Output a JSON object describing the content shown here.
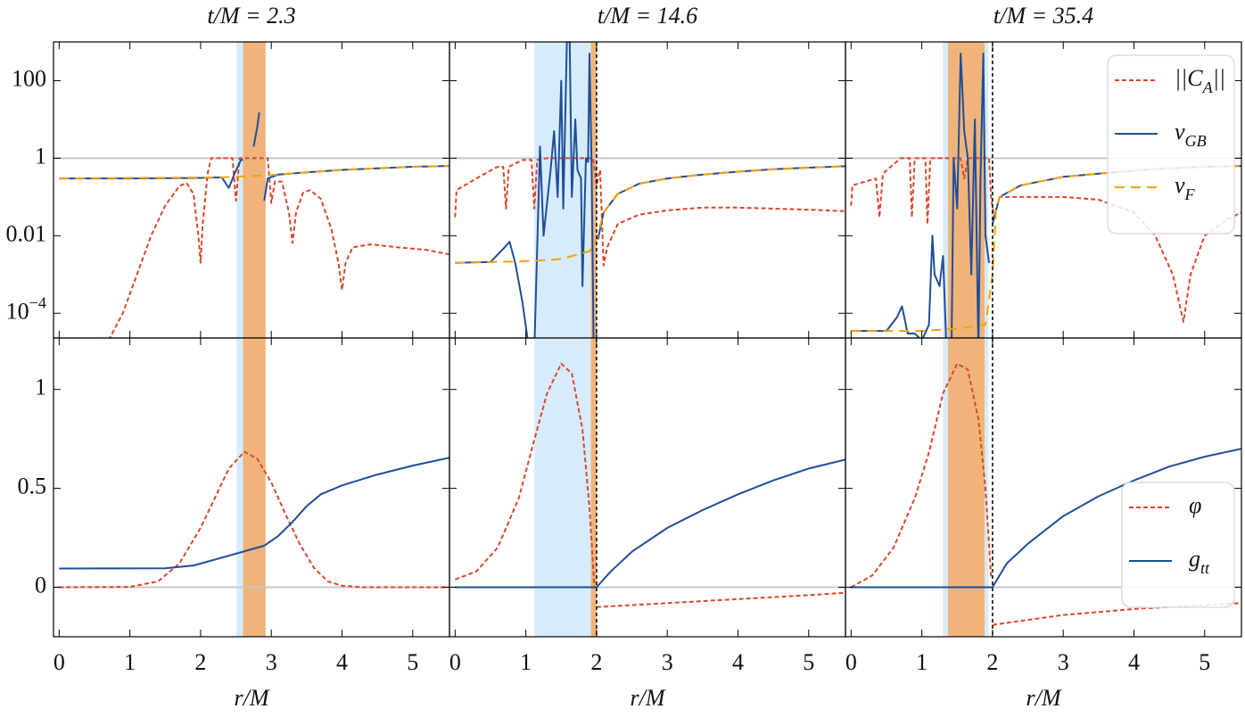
{
  "chart_data": [
    {
      "type": "line",
      "title": "t/M = 2.3",
      "yscale": "log",
      "xlim": [
        -0.08,
        5.52
      ],
      "ylim": [
        2.3e-05,
        1000
      ],
      "xticks": [
        0,
        1,
        2,
        3,
        4,
        5
      ],
      "yticks": [
        100,
        1,
        0.01,
        {
          "value": 0.0001,
          "label": "10^{-4}"
        }
      ],
      "xtick_labels": false,
      "ytick_labels": true,
      "hline": 1,
      "bands": [
        {
          "x": [
            2.51,
            2.6
          ],
          "color": "#d6ebfb"
        },
        {
          "x": [
            2.6,
            2.92
          ],
          "color": "#f0b47a"
        }
      ],
      "series": [
        {
          "color": "#d9472b",
          "linestyle": "dashed",
          "x": [
            0.7,
            0.9,
            1.1,
            1.3,
            1.5,
            1.7,
            1.8,
            1.9,
            1.97,
            2.0,
            2.03,
            2.1,
            2.15,
            2.45,
            2.5,
            2.55,
            2.95,
            3.0,
            3.05,
            3.15,
            3.25,
            3.3,
            3.35,
            3.45,
            3.55,
            3.7,
            3.85,
            3.95,
            4.0,
            4.05,
            4.15,
            4.4,
            4.8,
            5.2,
            5.52
          ],
          "values": [
            2e-05,
            0.0001,
            0.001,
            0.01,
            0.06,
            0.19,
            0.23,
            0.12,
            0.01,
            0.002,
            0.02,
            0.4,
            1,
            1,
            0.08,
            1,
            1,
            0.07,
            0.25,
            0.25,
            0.04,
            0.0065,
            0.04,
            0.13,
            0.15,
            0.09,
            0.015,
            0.002,
            0.0004,
            0.002,
            0.005,
            0.006,
            0.005,
            0.0043,
            0.0033
          ]
        },
        {
          "color": "#1f4e99",
          "linestyle": "solid",
          "x": [
            0,
            1,
            2,
            2.3,
            2.4,
            2.48,
            2.57,
            2.6,
            2.65,
            2.75,
            2.8,
            2.83,
            2.86,
            2.9,
            2.95,
            3.1,
            3.5,
            4,
            4.5,
            5,
            5.52
          ],
          "values": [
            0.3,
            0.3,
            0.31,
            0.32,
            0.17,
            0.4,
            0.9,
            0.9,
            null,
            2,
            6,
            15,
            null,
            0.08,
            0.3,
            0.38,
            0.43,
            0.5,
            0.55,
            0.6,
            0.63
          ]
        },
        {
          "color": "#f0a30a",
          "linestyle": "longdash",
          "x": [
            0,
            2.3,
            2.9,
            3.1,
            3.5,
            4,
            4.5,
            5,
            5.52
          ],
          "values": [
            0.3,
            0.32,
            0.36,
            0.38,
            0.43,
            0.5,
            0.55,
            0.6,
            0.63
          ]
        }
      ]
    },
    {
      "type": "line",
      "title": "t/M = 14.6",
      "yscale": "log",
      "xlim": [
        -0.08,
        5.52
      ],
      "ylim": [
        2.3e-05,
        1000
      ],
      "xticks": [
        0,
        1,
        2,
        3,
        4,
        5
      ],
      "yticks": [
        100,
        1,
        0.01,
        0.0001
      ],
      "xtick_labels": false,
      "ytick_labels": false,
      "hline": 1,
      "vline": 2.0,
      "bands": [
        {
          "x": [
            1.12,
            1.92
          ],
          "color": "#d6ebfb"
        },
        {
          "x": [
            1.92,
            2.0
          ],
          "color": "#f0b47a"
        }
      ],
      "series": [
        {
          "color": "#d9472b",
          "linestyle": "dashed",
          "x": [
            0,
            0.02,
            0.3,
            0.6,
            0.68,
            0.72,
            0.76,
            0.95,
            1.08,
            1.12,
            1.16,
            1.3,
            1.95,
            2.0,
            2.05,
            2.1,
            2.15,
            2.3,
            2.6,
            3,
            3.5,
            4,
            4.5,
            5,
            5.52
          ],
          "values": [
            0.03,
            0.15,
            0.3,
            0.6,
            0.6,
            0.05,
            0.6,
            0.9,
            0.9,
            0.05,
            0.9,
            1,
            1,
            0.2,
            0.5,
            0.0017,
            0.005,
            0.02,
            0.035,
            0.045,
            0.053,
            0.053,
            0.05,
            0.047,
            0.043
          ]
        },
        {
          "color": "#1f4e99",
          "linestyle": "solid",
          "x": [
            0,
            0.5,
            0.7,
            0.77,
            0.85,
            0.95,
            1.05,
            1.08,
            1.12,
            1.2,
            1.25,
            1.35,
            1.4,
            1.45,
            1.5,
            1.53,
            1.58,
            1.62,
            1.65,
            1.7,
            1.73,
            1.78,
            1.8,
            1.85,
            1.88,
            1.9,
            1.93,
            1.96,
            1.98,
            2.02,
            2.1,
            2.3,
            2.6,
            3,
            3.5,
            4,
            4.5,
            5,
            5.52
          ],
          "values": [
            0.002,
            0.0021,
            0.005,
            0.007,
            0.002,
            0.0002,
            1e-05,
            null,
            1e-05,
            2,
            0.01,
            0.5,
            5,
            0.1,
            100,
            0.05,
            1000,
            1000,
            0.1,
            10,
            0.5,
            0.3,
            0.0005,
            1,
            0.8,
            500,
            0.5,
            1e-05,
            null,
            0.008,
            0.04,
            0.12,
            0.22,
            0.3,
            0.38,
            0.45,
            0.52,
            0.57,
            0.62
          ]
        },
        {
          "color": "#f0a30a",
          "linestyle": "longdash",
          "x": [
            0,
            1,
            1.5,
            1.9,
            2.0,
            2.1,
            2.3,
            2.6,
            3,
            3.5,
            4,
            4.5,
            5,
            5.52
          ],
          "values": [
            0.002,
            0.0022,
            0.0025,
            0.004,
            0.008,
            0.04,
            0.12,
            0.22,
            0.3,
            0.38,
            0.45,
            0.52,
            0.57,
            0.62
          ]
        }
      ]
    },
    {
      "type": "line",
      "title": "t/M = 35.4",
      "yscale": "log",
      "xlim": [
        -0.08,
        5.52
      ],
      "ylim": [
        2.3e-05,
        1000
      ],
      "xticks": [
        0,
        1,
        2,
        3,
        4,
        5
      ],
      "yticks": [
        100,
        1,
        0.01,
        0.0001
      ],
      "xtick_labels": false,
      "ytick_labels": false,
      "hline": 1,
      "vline": 2.0,
      "legend": "upper right",
      "bands": [
        {
          "x": [
            1.3,
            1.37
          ],
          "color": "#d6ebfb"
        },
        {
          "x": [
            1.37,
            1.89
          ],
          "color": "#f0b47a"
        },
        {
          "x": [
            1.89,
            1.94
          ],
          "color": "#d6ebfb"
        }
      ],
      "series": [
        {
          "name": "||C_A||",
          "color": "#d9472b",
          "linestyle": "dashed",
          "x": [
            0,
            0.02,
            0.35,
            0.4,
            0.45,
            0.7,
            0.83,
            0.86,
            0.9,
            1.05,
            1.08,
            1.12,
            1.55,
            1.6,
            1.65,
            1.95,
            1.98,
            2.02,
            2.1,
            2.5,
            3,
            3.5,
            4,
            4.3,
            4.55,
            4.7,
            4.8,
            5.0,
            5.3,
            5.52
          ],
          "values": [
            0.06,
            0.2,
            0.3,
            0.03,
            0.4,
            1,
            1,
            0.03,
            1,
            1,
            0.02,
            1,
            1,
            0.3,
            1,
            1,
            0.1,
            0.03,
            0.1,
            0.1,
            0.1,
            0.085,
            0.04,
            0.01,
            0.001,
            6e-05,
            0.001,
            0.01,
            0.025,
            0.04
          ]
        },
        {
          "name": "v_{GB}",
          "color": "#1f4e99",
          "linestyle": "solid",
          "x": [
            0,
            0.5,
            0.65,
            0.72,
            0.8,
            0.9,
            1.0,
            1.1,
            1.15,
            1.18,
            1.25,
            1.3,
            1.35,
            1.38,
            1.42,
            1.45,
            1.5,
            1.55,
            1.6,
            1.65,
            1.7,
            1.75,
            1.8,
            1.83,
            1.87,
            1.9,
            1.95,
            1.97,
            2.0,
            2.1,
            2.4,
            3,
            3.5,
            4,
            4.5,
            5,
            5.52
          ],
          "values": [
            3.5e-05,
            3.5e-05,
            8e-05,
            0.00015,
            3e-05,
            3e-05,
            2e-05,
            5e-05,
            0.01,
            0.001,
            0.0005,
            0.003,
            1e-05,
            null,
            1e-05,
            1,
            0.05,
            500,
            5,
            1,
            0.001,
            10,
            1e-05,
            0.3,
            500,
            0.01,
            0.002,
            null,
            0.02,
            0.1,
            0.2,
            0.33,
            0.4,
            0.48,
            0.55,
            0.6,
            0.63
          ]
        },
        {
          "name": "v_F",
          "color": "#f0a30a",
          "linestyle": "longdash",
          "x": [
            0,
            1,
            1.5,
            1.9,
            2.0,
            2.05,
            2.1,
            2.4,
            3,
            3.5,
            4,
            4.5,
            5,
            5.52
          ],
          "values": [
            3.5e-05,
            3.5e-05,
            4e-05,
            5e-05,
            0.001,
            0.05,
            0.1,
            0.2,
            0.33,
            0.4,
            0.48,
            0.55,
            0.6,
            0.63
          ]
        }
      ]
    },
    {
      "type": "line",
      "xlabel": "r/M",
      "xlim": [
        -0.08,
        5.52
      ],
      "ylim": [
        -0.25,
        1.26
      ],
      "xticks": [
        0,
        1,
        2,
        3,
        4,
        5
      ],
      "yticks": [
        0,
        0.5,
        1
      ],
      "xtick_labels": true,
      "ytick_labels": true,
      "hline": 0,
      "bands": [
        {
          "x": [
            2.51,
            2.6
          ],
          "color": "#d6ebfb"
        },
        {
          "x": [
            2.6,
            2.92
          ],
          "color": "#f0b47a"
        }
      ],
      "series": [
        {
          "color": "#d9472b",
          "linestyle": "dashed",
          "x": [
            0,
            1,
            1.4,
            1.7,
            2.0,
            2.2,
            2.4,
            2.62,
            2.8,
            3.0,
            3.2,
            3.4,
            3.6,
            3.8,
            4.0,
            4.3,
            5.52
          ],
          "values": [
            0,
            0.002,
            0.03,
            0.12,
            0.3,
            0.45,
            0.6,
            0.685,
            0.65,
            0.53,
            0.37,
            0.22,
            0.1,
            0.03,
            0.008,
            0,
            0
          ]
        },
        {
          "color": "#1f4e99",
          "linestyle": "solid",
          "x": [
            0,
            1.5,
            1.9,
            2.3,
            2.6,
            2.9,
            3.1,
            3.3,
            3.5,
            3.7,
            4,
            4.5,
            5,
            5.52
          ],
          "values": [
            0.095,
            0.096,
            0.11,
            0.15,
            0.18,
            0.21,
            0.26,
            0.33,
            0.41,
            0.47,
            0.515,
            0.57,
            0.615,
            0.655
          ]
        }
      ]
    },
    {
      "type": "line",
      "xlabel": "r/M",
      "xlim": [
        -0.08,
        5.52
      ],
      "ylim": [
        -0.25,
        1.26
      ],
      "xticks": [
        0,
        1,
        2,
        3,
        4,
        5
      ],
      "yticks": [
        0,
        0.5,
        1
      ],
      "xtick_labels": true,
      "ytick_labels": false,
      "hline": 0,
      "vline": 2.0,
      "bands": [
        {
          "x": [
            1.12,
            1.92
          ],
          "color": "#d6ebfb"
        },
        {
          "x": [
            1.92,
            2.0
          ],
          "color": "#f0b47a"
        }
      ],
      "series": [
        {
          "color": "#d9472b",
          "linestyle": "dashed",
          "x": [
            0,
            0.3,
            0.6,
            0.9,
            1.1,
            1.3,
            1.5,
            1.65,
            1.8,
            1.9,
            1.97,
            1.99,
            2.0,
            3,
            4,
            5,
            5.52
          ],
          "values": [
            0.04,
            0.08,
            0.2,
            0.45,
            0.72,
            0.98,
            1.13,
            1.08,
            0.8,
            0.4,
            0,
            null,
            -0.1,
            -0.08,
            -0.06,
            -0.04,
            -0.028
          ]
        },
        {
          "color": "#1f4e99",
          "linestyle": "solid",
          "x": [
            0,
            2,
            2.2,
            2.5,
            3,
            3.5,
            4,
            4.5,
            5,
            5.52
          ],
          "values": [
            0,
            0,
            0.08,
            0.18,
            0.3,
            0.39,
            0.47,
            0.54,
            0.6,
            0.645
          ]
        }
      ]
    },
    {
      "type": "line",
      "xlabel": "r/M",
      "xlim": [
        -0.08,
        5.52
      ],
      "ylim": [
        -0.25,
        1.26
      ],
      "xticks": [
        0,
        1,
        2,
        3,
        4,
        5
      ],
      "yticks": [
        0,
        0.5,
        1
      ],
      "xtick_labels": true,
      "ytick_labels": false,
      "hline": 0,
      "vline": 2.0,
      "legend": "lower right",
      "bands": [
        {
          "x": [
            1.3,
            1.37
          ],
          "color": "#d6ebfb"
        },
        {
          "x": [
            1.37,
            1.89
          ],
          "color": "#f0b47a"
        },
        {
          "x": [
            1.89,
            1.94
          ],
          "color": "#d6ebfb"
        }
      ],
      "series": [
        {
          "name": "φ",
          "color": "#d9472b",
          "linestyle": "dashed",
          "x": [
            0,
            0.3,
            0.6,
            0.9,
            1.1,
            1.3,
            1.5,
            1.65,
            1.8,
            1.9,
            1.98,
            1.99,
            2.0,
            3,
            4,
            5,
            5.52
          ],
          "values": [
            0,
            0.06,
            0.2,
            0.45,
            0.68,
            0.98,
            1.13,
            1.1,
            0.85,
            0.5,
            0.05,
            null,
            -0.19,
            -0.14,
            -0.11,
            -0.09,
            -0.08
          ]
        },
        {
          "name": "g_{tt}",
          "color": "#1f4e99",
          "linestyle": "solid",
          "x": [
            0,
            2,
            2.2,
            2.5,
            3,
            3.5,
            4,
            4.5,
            5,
            5.52
          ],
          "values": [
            0,
            0,
            0.12,
            0.22,
            0.36,
            0.46,
            0.54,
            0.61,
            0.66,
            0.7
          ]
        }
      ]
    }
  ]
}
